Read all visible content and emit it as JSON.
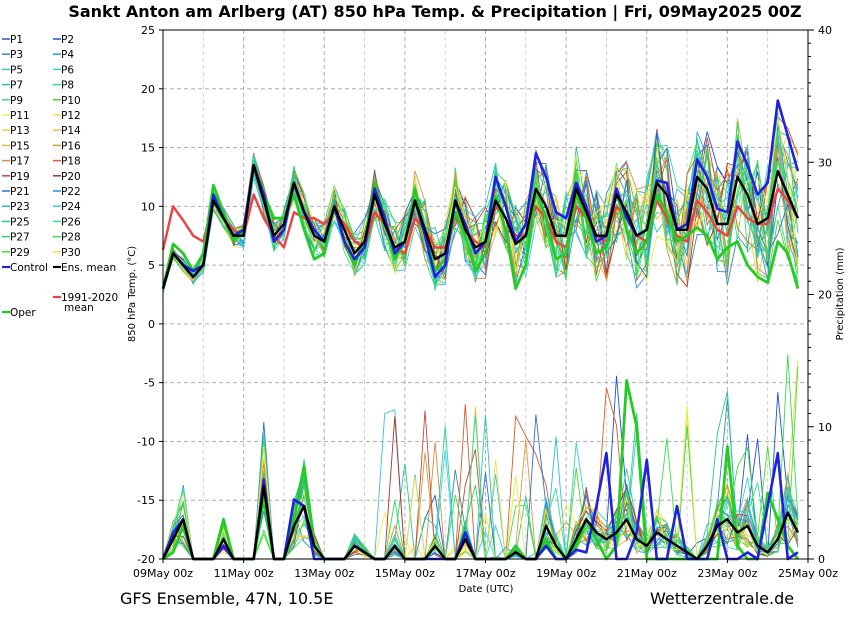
{
  "chart_data": {
    "type": "line",
    "title": "Sankt Anton am Arlberg  (AT)  850 hPa Temp. & Precipitation | Fri, 09May2025 00Z",
    "xlabel": "Date (UTC)",
    "ylabel_left": "850 hPa Temp. (°C)",
    "ylabel_right": "Precipitation (mm)",
    "footer_left": "GFS Ensemble, 47N, 10.5E",
    "footer_right": "Wetterzentrale.de",
    "x_range_hours": [
      0,
      384
    ],
    "x_ticks": [
      {
        "h": 0,
        "label": "09May 00z"
      },
      {
        "h": 48,
        "label": "11May 00z"
      },
      {
        "h": 96,
        "label": "13May 00z"
      },
      {
        "h": 144,
        "label": "15May 00z"
      },
      {
        "h": 192,
        "label": "17May 00z"
      },
      {
        "h": 240,
        "label": "19May 00z"
      },
      {
        "h": 288,
        "label": "21May 00z"
      },
      {
        "h": 336,
        "label": "23May 00z"
      },
      {
        "h": 384,
        "label": "25May 00z"
      }
    ],
    "y_left": {
      "min": -20,
      "max": 25,
      "ticks": [
        -20,
        -15,
        -10,
        -5,
        0,
        5,
        10,
        15,
        20,
        25
      ]
    },
    "y_right": {
      "min": 0,
      "max": 40,
      "ticks": [
        0,
        10,
        20,
        30,
        40
      ]
    },
    "grid": true,
    "legend": [
      {
        "label": "P1",
        "color": "#2554c7"
      },
      {
        "label": "P2",
        "color": "#1e4fd8"
      },
      {
        "label": "P3",
        "color": "#2e8fb8"
      },
      {
        "label": "P4",
        "color": "#22a0e6"
      },
      {
        "label": "P5",
        "color": "#33c7d9"
      },
      {
        "label": "P6",
        "color": "#2fd6c6"
      },
      {
        "label": "P7",
        "color": "#27c99a"
      },
      {
        "label": "P8",
        "color": "#2bd98a"
      },
      {
        "label": "P9",
        "color": "#3fe06a"
      },
      {
        "label": "P10",
        "color": "#44d92a"
      },
      {
        "label": "P11",
        "color": "#f2f04a"
      },
      {
        "label": "P12",
        "color": "#f5e04a"
      },
      {
        "label": "P13",
        "color": "#f5d23a"
      },
      {
        "label": "P14",
        "color": "#f2c23a"
      },
      {
        "label": "P15",
        "color": "#f0b84a"
      },
      {
        "label": "P16",
        "color": "#d99a3a"
      },
      {
        "label": "P17",
        "color": "#e08a3a"
      },
      {
        "label": "P18",
        "color": "#d95a2a"
      },
      {
        "label": "P19",
        "color": "#c04a3a"
      },
      {
        "label": "P20",
        "color": "#b0302a"
      },
      {
        "label": "P21",
        "color": "#2e6fd0"
      },
      {
        "label": "P22",
        "color": "#2a90e0"
      },
      {
        "label": "P23",
        "color": "#33b8d9"
      },
      {
        "label": "P24",
        "color": "#39d0f0"
      },
      {
        "label": "P25",
        "color": "#2bc9a8"
      },
      {
        "label": "P26",
        "color": "#2be0a0"
      },
      {
        "label": "P27",
        "color": "#2ed660"
      },
      {
        "label": "P28",
        "color": "#33e048"
      },
      {
        "label": "P29",
        "color": "#45e034"
      },
      {
        "label": "P30",
        "color": "#f0ea40"
      },
      {
        "label": "Control",
        "color": "#2020e0"
      },
      {
        "label": "Ens. mean",
        "color": "#000000"
      },
      {
        "label": "1991-2020",
        "color": "#f04040"
      },
      {
        "label": "mean",
        "color": ""
      },
      {
        "label": "Oper",
        "color": "#22cc22"
      }
    ],
    "series": [
      {
        "name": "Control",
        "axis": "temp",
        "color": "#2020e0",
        "width": 2.6,
        "y": [
          3,
          6,
          5,
          4.5,
          5,
          11,
          9,
          7.5,
          8,
          13.5,
          11,
          7,
          8,
          12,
          9.5,
          8,
          7,
          10,
          7,
          5.5,
          6.5,
          11.5,
          9,
          6,
          7,
          10.5,
          7.5,
          4,
          5,
          10.5,
          8.5,
          6,
          7,
          12.5,
          10,
          7,
          8.5,
          14.5,
          12.5,
          9.5,
          9,
          12,
          10,
          7,
          7.5,
          11.5,
          9,
          7.5,
          8,
          12.2,
          12,
          8,
          8.5,
          14,
          12.5,
          9.8,
          9.5,
          15.5,
          13.5,
          11,
          12,
          19,
          16,
          13
        ]
      },
      {
        "name": "Ens. mean",
        "axis": "temp",
        "color": "#000000",
        "width": 2.4,
        "y": [
          3,
          6,
          5,
          4,
          5,
          10.5,
          9,
          7.5,
          7.5,
          13.5,
          10.5,
          7.5,
          8.5,
          12,
          9.5,
          7.5,
          7,
          10,
          8,
          6,
          7,
          11,
          8.5,
          6.5,
          7,
          10.5,
          8,
          5.5,
          6,
          10.5,
          8,
          6.5,
          7,
          10.5,
          9,
          6.8,
          7.5,
          11.5,
          10,
          7.5,
          7.5,
          11.5,
          9.5,
          7.5,
          7.5,
          11,
          9.5,
          7.5,
          8,
          12,
          11,
          8,
          8,
          12.5,
          11.5,
          8.5,
          8.5,
          12.5,
          11,
          8.5,
          9,
          13,
          11,
          9
        ]
      },
      {
        "name": "Oper",
        "axis": "temp",
        "color": "#22cc22",
        "width": 2.8,
        "y": [
          3,
          6.8,
          6,
          4.5,
          6,
          11.8,
          9.5,
          7,
          8,
          13.5,
          11,
          9,
          9,
          11,
          8,
          5.5,
          6,
          10,
          7,
          5,
          7,
          12,
          9,
          5.5,
          7,
          11.5,
          8,
          4.5,
          5.5,
          9.5,
          7.5,
          4.5,
          6,
          10.8,
          8,
          3,
          5,
          11.5,
          9,
          5.5,
          6,
          11,
          9,
          6,
          6.5,
          11.5,
          8,
          6,
          7,
          11,
          9.5,
          7,
          7.5,
          8.2,
          7.5,
          5.5,
          6.5,
          7,
          5,
          4,
          3.5,
          7,
          6,
          3
        ]
      },
      {
        "name": "1991-2020 mean",
        "axis": "temp",
        "color": "#f04040",
        "width": 2.4,
        "y": [
          6.3,
          10,
          8.8,
          7.5,
          7,
          10.5,
          9,
          8,
          7.5,
          11,
          9,
          7.5,
          6.5,
          9.5,
          9,
          9,
          8.5,
          9.5,
          8.5,
          7,
          6.5,
          9.5,
          8.5,
          6.5,
          6,
          9,
          8,
          6.5,
          6.5,
          9,
          8,
          7,
          6.5,
          10,
          9,
          7.5,
          7.5,
          10,
          9,
          7,
          6.5,
          10,
          9,
          7.5,
          7,
          10,
          9,
          7.5,
          7,
          10.5,
          9,
          7.5,
          7,
          10.5,
          9.5,
          8,
          7.5,
          10,
          9,
          8.5,
          8.5,
          11.5,
          10.5,
          9
        ]
      },
      {
        "name": "Control",
        "axis": "precip",
        "color": "#2020e0",
        "width": 2.6,
        "y": [
          0,
          2,
          3,
          0,
          0,
          0,
          1,
          0,
          0,
          0,
          6,
          0,
          0,
          4.5,
          4,
          0,
          0,
          0,
          0,
          1,
          0.5,
          0,
          0,
          1,
          0,
          0,
          0,
          0,
          0,
          0,
          2,
          0,
          0,
          0,
          0,
          0.5,
          0,
          0,
          1,
          0,
          0,
          0.7,
          0.5,
          4,
          8,
          0,
          0,
          2,
          7.5,
          0,
          0,
          4,
          0,
          0,
          0,
          3,
          0,
          0,
          0.5,
          0,
          4,
          8,
          0,
          0.5
        ]
      },
      {
        "name": "Ens. mean",
        "axis": "precip",
        "color": "#000000",
        "width": 2.4,
        "y": [
          0,
          1.5,
          3,
          0,
          0,
          0,
          1.5,
          0,
          0,
          0,
          5.5,
          0,
          0,
          2.5,
          4,
          1,
          0,
          0,
          0,
          1,
          0.5,
          0,
          0,
          1,
          0,
          0,
          0,
          1,
          0,
          0,
          1.5,
          0,
          0,
          0,
          0,
          0.5,
          0,
          0,
          2.5,
          1,
          0,
          1.5,
          3,
          2,
          1.5,
          2,
          3,
          1.5,
          1,
          2,
          1.5,
          1,
          0.5,
          0,
          1,
          2.5,
          3,
          2,
          2.5,
          1,
          0.5,
          1.5,
          3.5,
          2
        ]
      },
      {
        "name": "Oper",
        "axis": "precip",
        "color": "#22cc22",
        "width": 2.8,
        "y": [
          0,
          0.5,
          2.5,
          0,
          0,
          0,
          3,
          0,
          0,
          0,
          4.5,
          0,
          0,
          3,
          7,
          1,
          0,
          0,
          0,
          1,
          0.5,
          0,
          0,
          1,
          0,
          0,
          0,
          1,
          0,
          0,
          2,
          0,
          0,
          0,
          0,
          1,
          0,
          0,
          1.5,
          0,
          0,
          1,
          3,
          1.5,
          0,
          1,
          13.5,
          10,
          0,
          0,
          0,
          0,
          0,
          0,
          0,
          0,
          8.5,
          1,
          0,
          0,
          5,
          3,
          1,
          0
        ]
      }
    ]
  }
}
